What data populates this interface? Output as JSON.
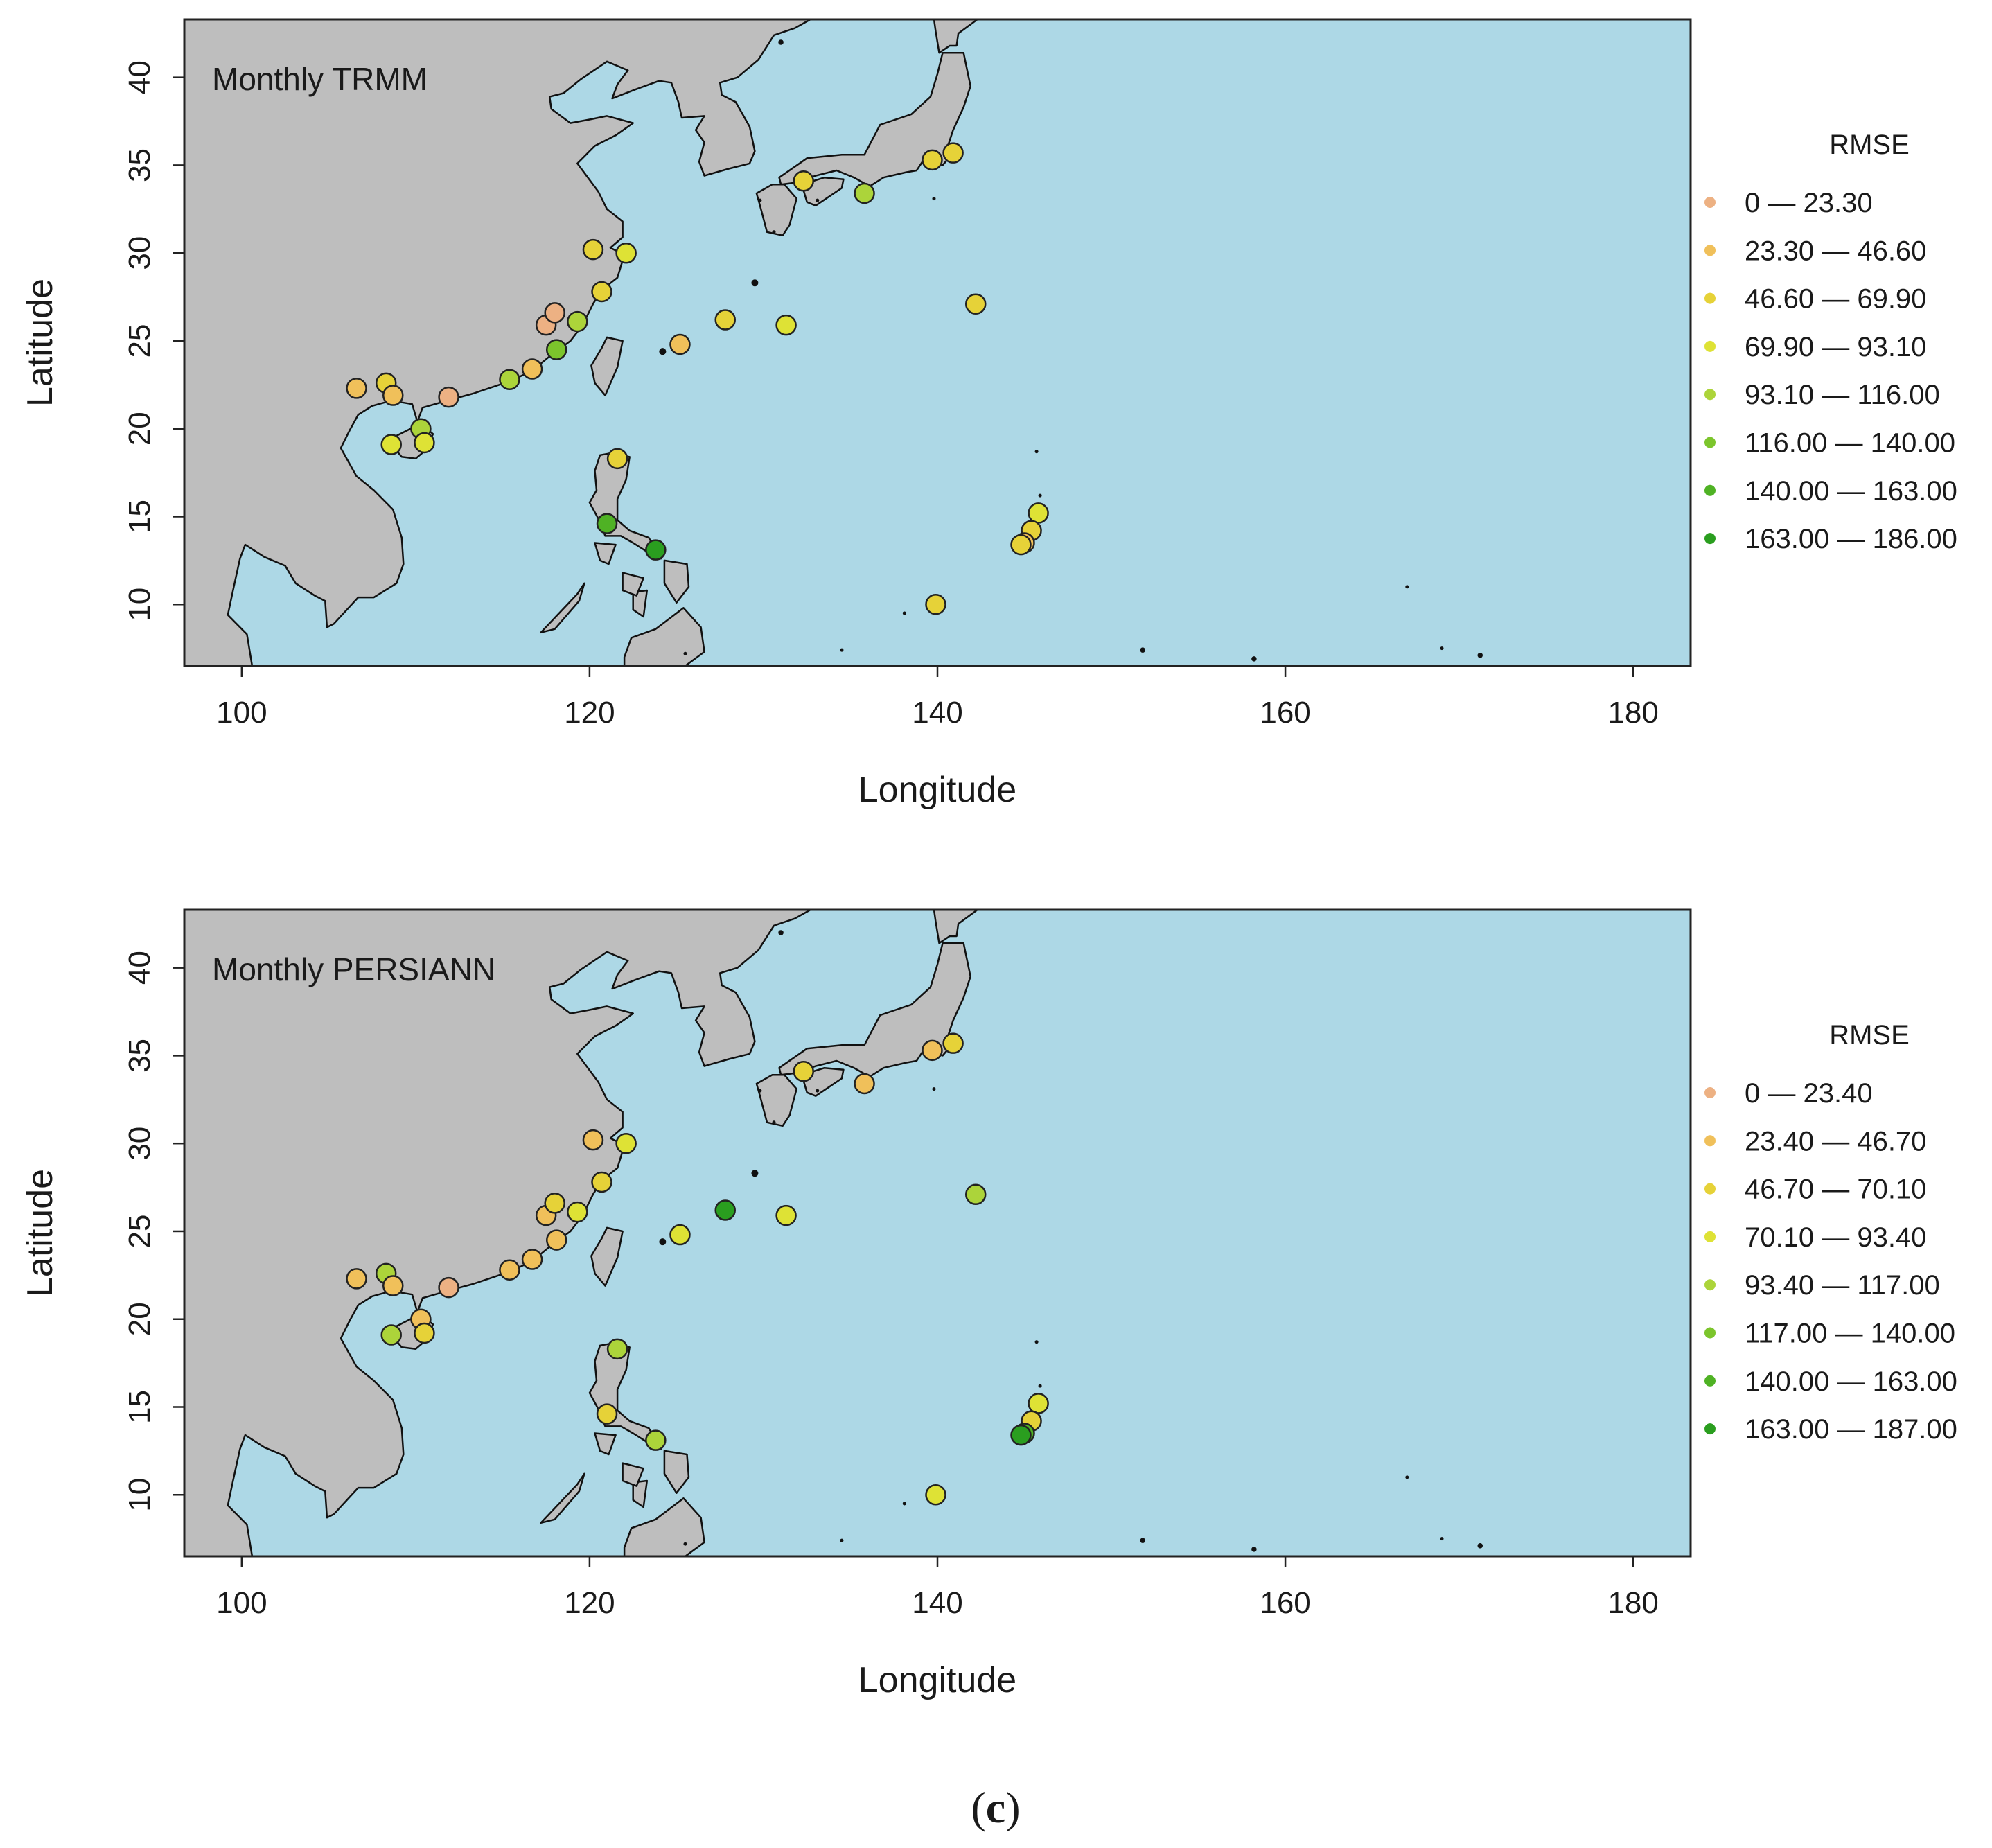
{
  "colors": {
    "ocean": "#add8e6",
    "land": "#bebebe",
    "coast": "#111111",
    "frame": "#222222",
    "points": [
      "#edb183",
      "#f0c05a",
      "#e6d238",
      "#dee235",
      "#acd43a",
      "#7cc52c",
      "#4fb224",
      "#2a9e1f"
    ]
  },
  "x_axis": {
    "label": "Longitude",
    "ticks": [
      100,
      120,
      140,
      160,
      180
    ]
  },
  "y_axis": {
    "label": "Latitude",
    "ticks": [
      10,
      15,
      20,
      25,
      30,
      35,
      40
    ]
  },
  "chart_data": [
    {
      "type": "map",
      "title": "Monthly TRMM",
      "xlabel": "Longitude",
      "ylabel": "Latitude",
      "xlim": [
        96.7,
        183.3
      ],
      "ylim": [
        6.5,
        43.3
      ],
      "legend": {
        "title": "RMSE",
        "placement": "right",
        "classes": [
          "0 — 23.30",
          "23.30 — 46.60",
          "46.60 — 69.90",
          "69.90 — 93.10",
          "93.10 — 116.00",
          "116.00 — 140.00",
          "140.00 — 163.00",
          "163.00 — 186.00"
        ]
      },
      "stations": [
        {
          "lon": 106.6,
          "lat": 22.3,
          "cls": 1
        },
        {
          "lon": 108.3,
          "lat": 22.6,
          "cls": 2
        },
        {
          "lon": 108.7,
          "lat": 21.9,
          "cls": 1
        },
        {
          "lon": 111.9,
          "lat": 21.8,
          "cls": 0
        },
        {
          "lon": 115.4,
          "lat": 22.8,
          "cls": 4
        },
        {
          "lon": 116.7,
          "lat": 23.4,
          "cls": 1
        },
        {
          "lon": 117.5,
          "lat": 25.9,
          "cls": 0
        },
        {
          "lon": 118.0,
          "lat": 26.6,
          "cls": 0
        },
        {
          "lon": 118.1,
          "lat": 24.5,
          "cls": 5
        },
        {
          "lon": 119.3,
          "lat": 26.1,
          "cls": 4
        },
        {
          "lon": 120.7,
          "lat": 27.8,
          "cls": 2
        },
        {
          "lon": 120.2,
          "lat": 30.2,
          "cls": 2
        },
        {
          "lon": 122.1,
          "lat": 30.0,
          "cls": 3
        },
        {
          "lon": 108.6,
          "lat": 19.1,
          "cls": 3
        },
        {
          "lon": 110.3,
          "lat": 20.0,
          "cls": 4
        },
        {
          "lon": 110.5,
          "lat": 19.2,
          "cls": 3
        },
        {
          "lon": 121.6,
          "lat": 18.3,
          "cls": 2
        },
        {
          "lon": 121.0,
          "lat": 14.6,
          "cls": 6
        },
        {
          "lon": 123.8,
          "lat": 13.1,
          "cls": 7
        },
        {
          "lon": 125.2,
          "lat": 24.8,
          "cls": 1
        },
        {
          "lon": 127.8,
          "lat": 26.2,
          "cls": 2
        },
        {
          "lon": 131.3,
          "lat": 25.9,
          "cls": 3
        },
        {
          "lon": 132.3,
          "lat": 34.1,
          "cls": 2
        },
        {
          "lon": 135.8,
          "lat": 33.4,
          "cls": 4
        },
        {
          "lon": 139.7,
          "lat": 35.3,
          "cls": 2
        },
        {
          "lon": 140.9,
          "lat": 35.7,
          "cls": 2
        },
        {
          "lon": 142.2,
          "lat": 27.1,
          "cls": 2
        },
        {
          "lon": 139.9,
          "lat": 10.0,
          "cls": 2
        },
        {
          "lon": 145.8,
          "lat": 15.2,
          "cls": 3
        },
        {
          "lon": 145.4,
          "lat": 14.2,
          "cls": 2
        },
        {
          "lon": 145.0,
          "lat": 13.5,
          "cls": 1
        },
        {
          "lon": 144.8,
          "lat": 13.4,
          "cls": 2
        }
      ]
    },
    {
      "type": "map",
      "title": "Monthly PERSIANN",
      "xlabel": "Longitude",
      "ylabel": "Latitude",
      "xlim": [
        96.7,
        183.3
      ],
      "ylim": [
        6.5,
        43.3
      ],
      "legend": {
        "title": "RMSE",
        "placement": "right",
        "classes": [
          "0 — 23.40",
          "23.40 — 46.70",
          "46.70 — 70.10",
          "70.10 — 93.40",
          "93.40 — 117.00",
          "117.00 — 140.00",
          "140.00 — 163.00",
          "163.00 — 187.00"
        ]
      },
      "stations": [
        {
          "lon": 106.6,
          "lat": 22.3,
          "cls": 1
        },
        {
          "lon": 108.3,
          "lat": 22.6,
          "cls": 4
        },
        {
          "lon": 108.7,
          "lat": 21.9,
          "cls": 1
        },
        {
          "lon": 111.9,
          "lat": 21.8,
          "cls": 0
        },
        {
          "lon": 115.4,
          "lat": 22.8,
          "cls": 1
        },
        {
          "lon": 116.7,
          "lat": 23.4,
          "cls": 1
        },
        {
          "lon": 117.5,
          "lat": 25.9,
          "cls": 1
        },
        {
          "lon": 118.0,
          "lat": 26.6,
          "cls": 2
        },
        {
          "lon": 118.1,
          "lat": 24.5,
          "cls": 1
        },
        {
          "lon": 119.3,
          "lat": 26.1,
          "cls": 3
        },
        {
          "lon": 120.7,
          "lat": 27.8,
          "cls": 2
        },
        {
          "lon": 120.2,
          "lat": 30.2,
          "cls": 1
        },
        {
          "lon": 122.1,
          "lat": 30.0,
          "cls": 3
        },
        {
          "lon": 108.6,
          "lat": 19.1,
          "cls": 4
        },
        {
          "lon": 110.3,
          "lat": 20.0,
          "cls": 1
        },
        {
          "lon": 110.5,
          "lat": 19.2,
          "cls": 2
        },
        {
          "lon": 121.6,
          "lat": 18.3,
          "cls": 4
        },
        {
          "lon": 121.0,
          "lat": 14.6,
          "cls": 2
        },
        {
          "lon": 123.8,
          "lat": 13.1,
          "cls": 4
        },
        {
          "lon": 125.2,
          "lat": 24.8,
          "cls": 3
        },
        {
          "lon": 127.8,
          "lat": 26.2,
          "cls": 7
        },
        {
          "lon": 131.3,
          "lat": 25.9,
          "cls": 3
        },
        {
          "lon": 132.3,
          "lat": 34.1,
          "cls": 2
        },
        {
          "lon": 135.8,
          "lat": 33.4,
          "cls": 1
        },
        {
          "lon": 139.7,
          "lat": 35.3,
          "cls": 1
        },
        {
          "lon": 140.9,
          "lat": 35.7,
          "cls": 2
        },
        {
          "lon": 142.2,
          "lat": 27.1,
          "cls": 4
        },
        {
          "lon": 139.9,
          "lat": 10.0,
          "cls": 3
        },
        {
          "lon": 145.8,
          "lat": 15.2,
          "cls": 3
        },
        {
          "lon": 145.4,
          "lat": 14.2,
          "cls": 2
        },
        {
          "lon": 145.0,
          "lat": 13.5,
          "cls": 6
        },
        {
          "lon": 144.8,
          "lat": 13.4,
          "cls": 7
        }
      ]
    }
  ],
  "caption": {
    "open": "(",
    "letter": "c",
    "close": ")"
  }
}
